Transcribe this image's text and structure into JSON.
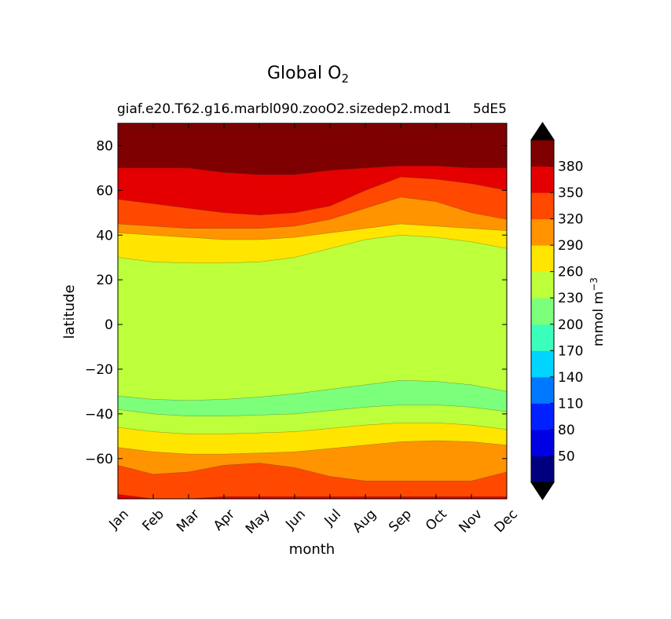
{
  "chart_data": {
    "type": "filled-contour",
    "title": "Global O",
    "title_subscript": "2",
    "subtitle_left": "giaf.e20.T62.g16.marbl090.zooO2.sizedep2.mod1",
    "subtitle_right": "5dE5",
    "xlabel": "month",
    "ylabel": "latitude",
    "x_tick_labels": [
      "Jan",
      "Feb",
      "Mar",
      "Apr",
      "May",
      "Jun",
      "Jul",
      "Aug",
      "Sep",
      "Oct",
      "Nov",
      "Dec"
    ],
    "x_range": [
      1,
      12
    ],
    "y_range": [
      -78,
      90
    ],
    "y_ticks": [
      80,
      60,
      40,
      20,
      0,
      -20,
      -40,
      -60
    ],
    "y_tick_labels": [
      "80",
      "60",
      "40",
      "20",
      "0",
      "−20",
      "−40",
      "−60"
    ],
    "colorbar": {
      "label": "mmol m",
      "label_superscript": "−3",
      "levels": [
        20,
        50,
        80,
        110,
        140,
        170,
        200,
        230,
        260,
        290,
        320,
        350,
        380,
        410
      ],
      "tick_labels": [
        "50",
        "80",
        "110",
        "140",
        "170",
        "200",
        "230",
        "260",
        "290",
        "320",
        "350",
        "380"
      ],
      "colors": [
        "#00007f",
        "#0000e4",
        "#0020ff",
        "#0078ff",
        "#00d4ff",
        "#3affbc",
        "#7cff7a",
        "#bcff3a",
        "#ffe500",
        "#ff9400",
        "#ff4800",
        "#e40000",
        "#7f0000"
      ],
      "extend_low_color": "#000000",
      "extend_high_color": "#000000"
    },
    "bands": [
      {
        "name": "band-abyss-south",
        "level": "> 380",
        "color": "#7f0000",
        "lower": [
          87.5,
          87.5,
          87.5,
          87.5,
          87.5,
          87.5,
          87.5,
          85.0,
          86.0,
          87.5,
          87.5,
          87.5
        ]
      },
      {
        "name": "band-350-380",
        "level": "350-380",
        "color": "#e40000",
        "lower": [
          70,
          70,
          70,
          68,
          67,
          67,
          69,
          70,
          71,
          71,
          70,
          70
        ]
      },
      {
        "name": "band-320-350",
        "level": "320-350",
        "color": "#ff4800",
        "lower": [
          56,
          54,
          52,
          50,
          49,
          50,
          53,
          60,
          66,
          65,
          63,
          60
        ]
      },
      {
        "name": "band-290-320",
        "level": "290-320",
        "color": "#ff9400",
        "lower": [
          45,
          44,
          43,
          43,
          43,
          44,
          47,
          52,
          57,
          55,
          50,
          47
        ]
      },
      {
        "name": "band-260-290",
        "level": "260-290",
        "color": "#ffe500",
        "lower": [
          41,
          40,
          39,
          38,
          38,
          39,
          41,
          43,
          45,
          44,
          43,
          42
        ]
      },
      {
        "name": "band-230-260",
        "level": "230-260",
        "color": "#bcff3a",
        "lower": [
          30,
          28,
          27.5,
          27.5,
          28,
          30,
          34,
          38,
          40,
          39,
          37,
          34
        ]
      },
      {
        "name": "band-200-230",
        "level": "200-230",
        "color": "#7cff7a",
        "lower": [
          -32,
          -33.5,
          -34,
          -33.5,
          -32.5,
          -31,
          -29,
          -27,
          -25,
          -25.5,
          -27,
          -30
        ]
      },
      {
        "name": "band-230-260-south",
        "level": "230-260",
        "color": "#bcff3a",
        "lower": [
          -38,
          -40,
          -41,
          -41,
          -40.5,
          -40,
          -38.5,
          -37,
          -36,
          -36,
          -37,
          -39
        ]
      },
      {
        "name": "band-260-290-south",
        "level": "260-290",
        "color": "#ffe500",
        "lower": [
          -46,
          -48,
          -49,
          -49,
          -48.5,
          -48,
          -46.5,
          -45,
          -44,
          -44,
          -45,
          -47
        ]
      },
      {
        "name": "band-290-320-south",
        "level": "290-320",
        "color": "#ff9400",
        "lower": [
          -55,
          -57,
          -58,
          -58,
          -57.5,
          -57,
          -55.5,
          -54,
          -52.5,
          -52,
          -52.5,
          -54
        ]
      },
      {
        "name": "band-320-350-south",
        "level": "320-350",
        "color": "#ff4800",
        "lower": [
          -63,
          -67,
          -66,
          -63,
          -62,
          -64,
          -68,
          -70,
          -70,
          -70,
          -70,
          -66
        ]
      },
      {
        "name": "band-350-380-south",
        "level": "350-380",
        "color": "#e40000",
        "lower": [
          -76,
          -78,
          -78,
          -77,
          -77,
          -77,
          -77,
          -77,
          -77,
          -77,
          -77,
          -77
        ]
      }
    ]
  }
}
